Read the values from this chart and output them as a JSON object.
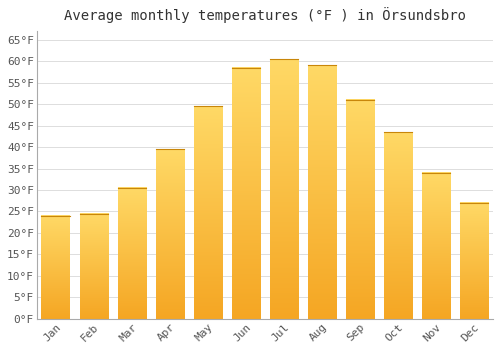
{
  "title": "Average monthly temperatures (°F ) in Örsundsbro",
  "months": [
    "Jan",
    "Feb",
    "Mar",
    "Apr",
    "May",
    "Jun",
    "Jul",
    "Aug",
    "Sep",
    "Oct",
    "Nov",
    "Dec"
  ],
  "values": [
    24,
    24.5,
    30.5,
    39.5,
    49.5,
    58.5,
    60.5,
    59,
    51,
    43.5,
    34,
    27
  ],
  "bar_color_bottom": "#F5A623",
  "bar_color_top": "#FFD966",
  "background_color": "#FFFFFF",
  "grid_color": "#DDDDDD",
  "text_color": "#555555",
  "ylim": [
    0,
    67
  ],
  "yticks": [
    0,
    5,
    10,
    15,
    20,
    25,
    30,
    35,
    40,
    45,
    50,
    55,
    60,
    65
  ],
  "title_fontsize": 10,
  "tick_fontsize": 8,
  "font_family": "monospace"
}
